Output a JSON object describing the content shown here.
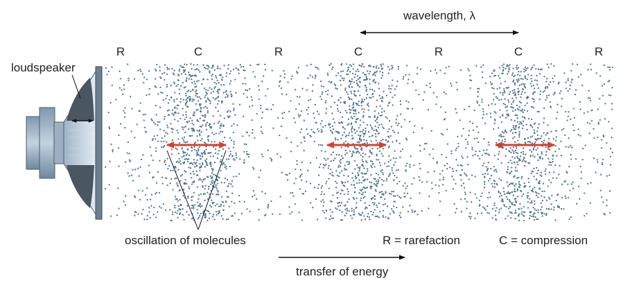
{
  "labels": {
    "wavelength": "wavelength, λ",
    "loudspeaker": "loudspeaker",
    "oscillation": "oscillation of molecules",
    "transfer": "transfer of energy",
    "legend_r": "R = rarefaction",
    "legend_c": "C = compression"
  },
  "region_labels": [
    "R",
    "C",
    "R",
    "C",
    "R",
    "C",
    "R"
  ],
  "colors": {
    "particle": "#4f7591",
    "oscillation_arrow": "#d9402b",
    "line": "#111111",
    "speaker_body": "#8fa6bb",
    "speaker_dark": "#3d4a55"
  },
  "icons": {
    "loudspeaker": "loudspeaker-icon"
  }
}
